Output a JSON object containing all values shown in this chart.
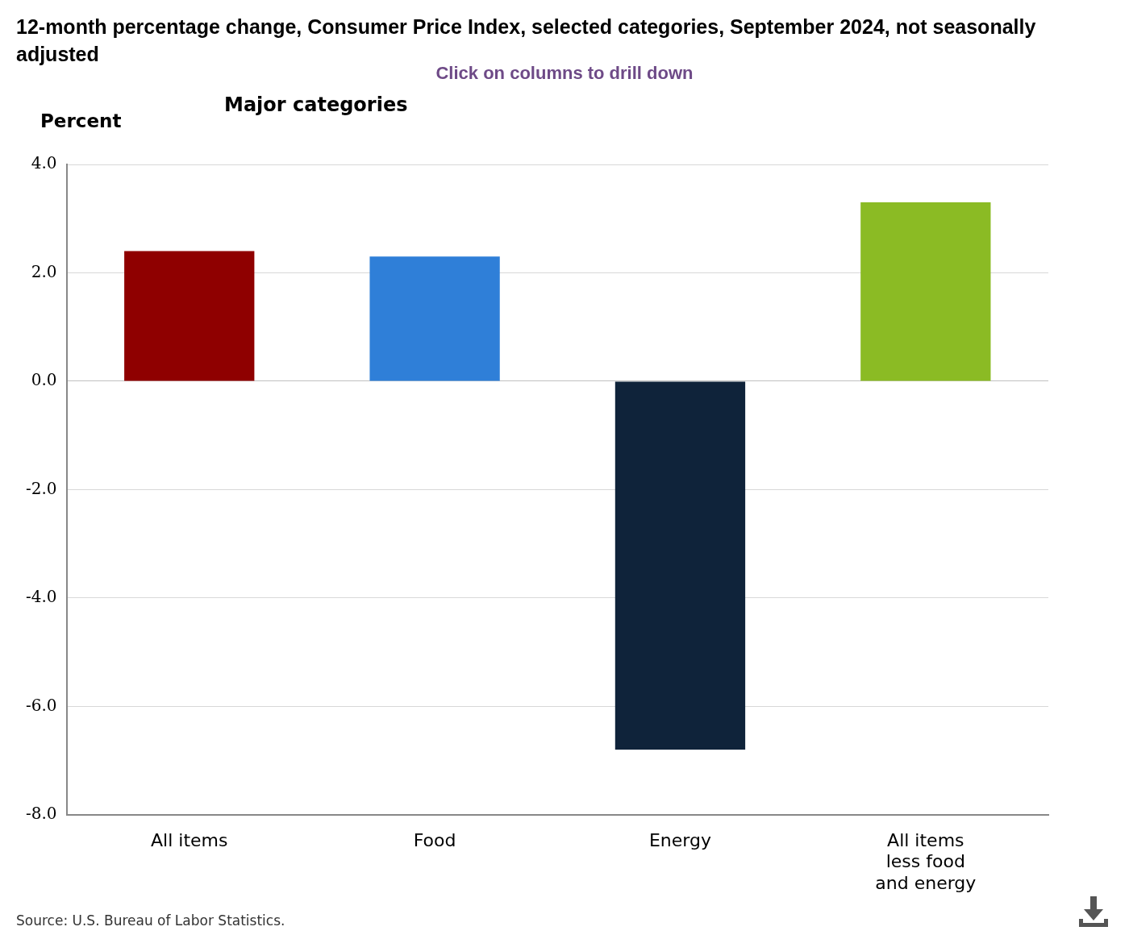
{
  "chart_data": {
    "type": "bar",
    "title": "12-month percentage change, Consumer Price Index, selected categories, September 2024, not seasonally adjusted",
    "subtitle": "Major categories",
    "ylabel": "Percent",
    "annotations": [
      "Click on columns to drill down",
      "Source: U.S. Bureau of Labor Statistics."
    ],
    "categories": [
      "All items",
      "Food",
      "Energy",
      "All items less food and energy"
    ],
    "values": [
      2.4,
      2.3,
      -6.8,
      3.3
    ],
    "colors": [
      "#8f0000",
      "#2f7fd8",
      "#0f233a",
      "#8bbb24"
    ],
    "ylim": [
      -8,
      4
    ],
    "yticks": [
      {
        "value": 4,
        "label": "4.0"
      },
      {
        "value": 2,
        "label": "2.0"
      },
      {
        "value": 0,
        "label": "0.0"
      },
      {
        "value": -2,
        "label": "-2.0"
      },
      {
        "value": -4,
        "label": "-4.0"
      },
      {
        "value": -6,
        "label": "-6.0"
      },
      {
        "value": -8,
        "label": "-8.0"
      }
    ],
    "grid": "y",
    "legend": false
  }
}
